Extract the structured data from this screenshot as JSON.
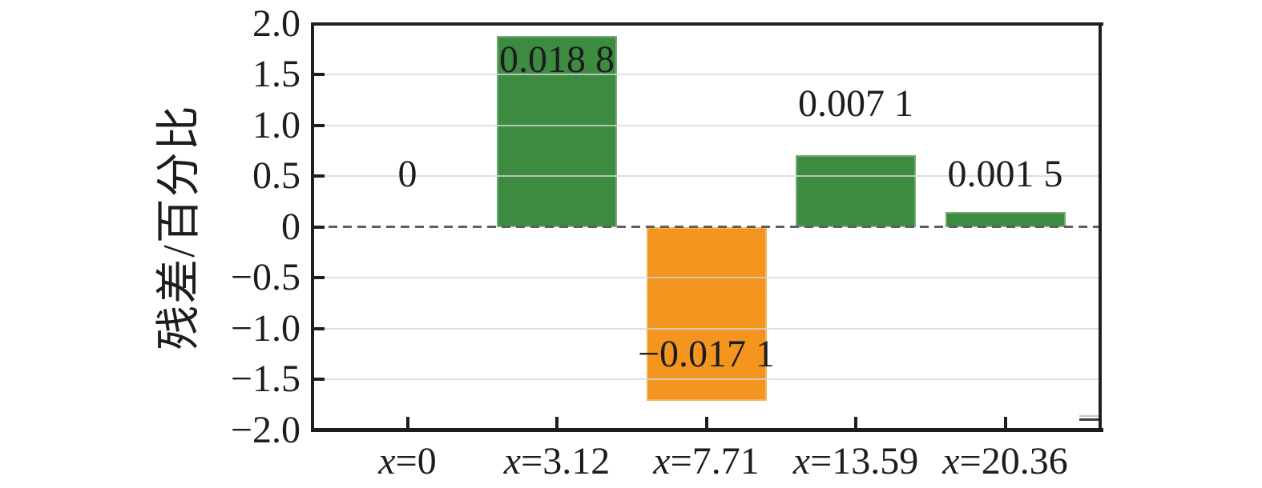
{
  "figure": {
    "background": "#ffffff"
  },
  "chart_data": {
    "type": "bar",
    "title": "",
    "xlabel": "",
    "ylabel": "残差/百分比",
    "categories": [
      "x=0",
      "x=3.12",
      "x=7.71",
      "x=13.59",
      "x=20.36"
    ],
    "values": [
      0,
      0.0188,
      -0.0171,
      0.0071,
      0.0015
    ],
    "values_percent": [
      0,
      1.88,
      -1.71,
      0.71,
      0.15
    ],
    "unit": "percent",
    "bar_labels": [
      "0",
      "0.018 8",
      "−0.017 1",
      "0.007 1",
      "0.001 5"
    ],
    "bar_colors": [
      "#3d8b40",
      "#3d8b40",
      "#f3951e",
      "#3d8b40",
      "#3d8b40"
    ],
    "ylim": [
      -2.0,
      2.0
    ],
    "ytick_labels": [
      "2.0",
      "1.5",
      "1.0",
      "0.5",
      "0",
      "−0.5",
      "−1.0",
      "−1.5",
      "−2.0"
    ],
    "ytick_values": [
      2.0,
      1.5,
      1.0,
      0.5,
      0,
      -0.5,
      -1.0,
      -1.5,
      -2.0
    ],
    "grid": "horizontal-light",
    "zero_line": "dashed",
    "legend": "none",
    "colors": {
      "positive_bar": "#3d8b40",
      "negative_bar": "#f3951e",
      "axis": "#1e1e1e",
      "grid": "#d6d6d6",
      "zero_line": "#5f5f5f",
      "text": "#1d1d1d"
    }
  }
}
